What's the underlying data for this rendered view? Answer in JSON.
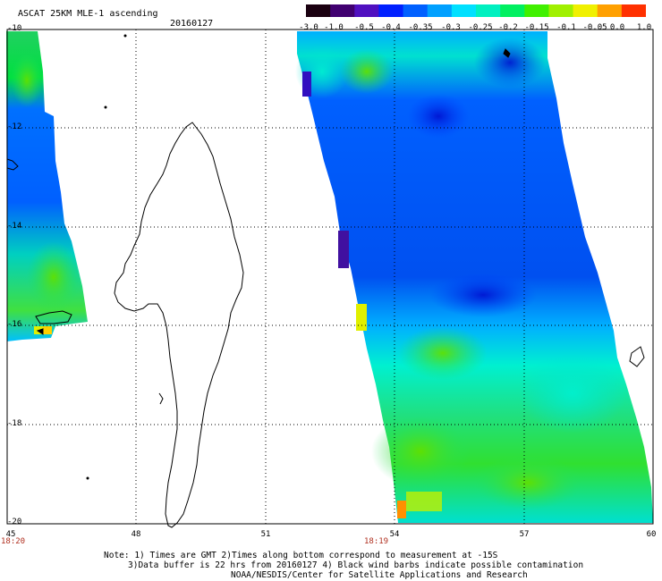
{
  "header": {
    "title": "ASCAT 25KM MLE-1 ascending",
    "date": "20160127"
  },
  "colorbar": {
    "labels": [
      "-3.0",
      "-1.0",
      "-0.5",
      "-0.4",
      "-0.35",
      "-0.3",
      "-0.25",
      "-0.2",
      "-0.15",
      "-0.1",
      "-0.05",
      "0.0",
      "1.0"
    ],
    "colors": [
      "#1a0010",
      "#400070",
      "#5010c0",
      "#0020ff",
      "#0060ff",
      "#00a0ff",
      "#00e0ff",
      "#00f0c0",
      "#00f060",
      "#40f000",
      "#a0f000",
      "#f0f000",
      "#ffa000",
      "#ff3000"
    ]
  },
  "axes": {
    "lat_labels": [
      "-10",
      "-12",
      "-14",
      "-16",
      "-18",
      "-20"
    ],
    "lon_labels": [
      "45",
      "48",
      "51",
      "54",
      "57",
      "60"
    ]
  },
  "time_labels": {
    "left": "18:20",
    "middle": "18:19"
  },
  "notes": {
    "line1": "Note: 1) Times are GMT 2)Times along bottom correspond to measurement at -15S",
    "line2": "3)Data buffer is 22 hrs from 20160127 4) Black wind barbs indicate possible contamination",
    "line3": "NOAA/NESDIS/Center for Satellite Applications and Research"
  },
  "map": {
    "lat_range": [
      -20,
      -10
    ],
    "lon_range": [
      45,
      60
    ],
    "grid": "dotted"
  }
}
